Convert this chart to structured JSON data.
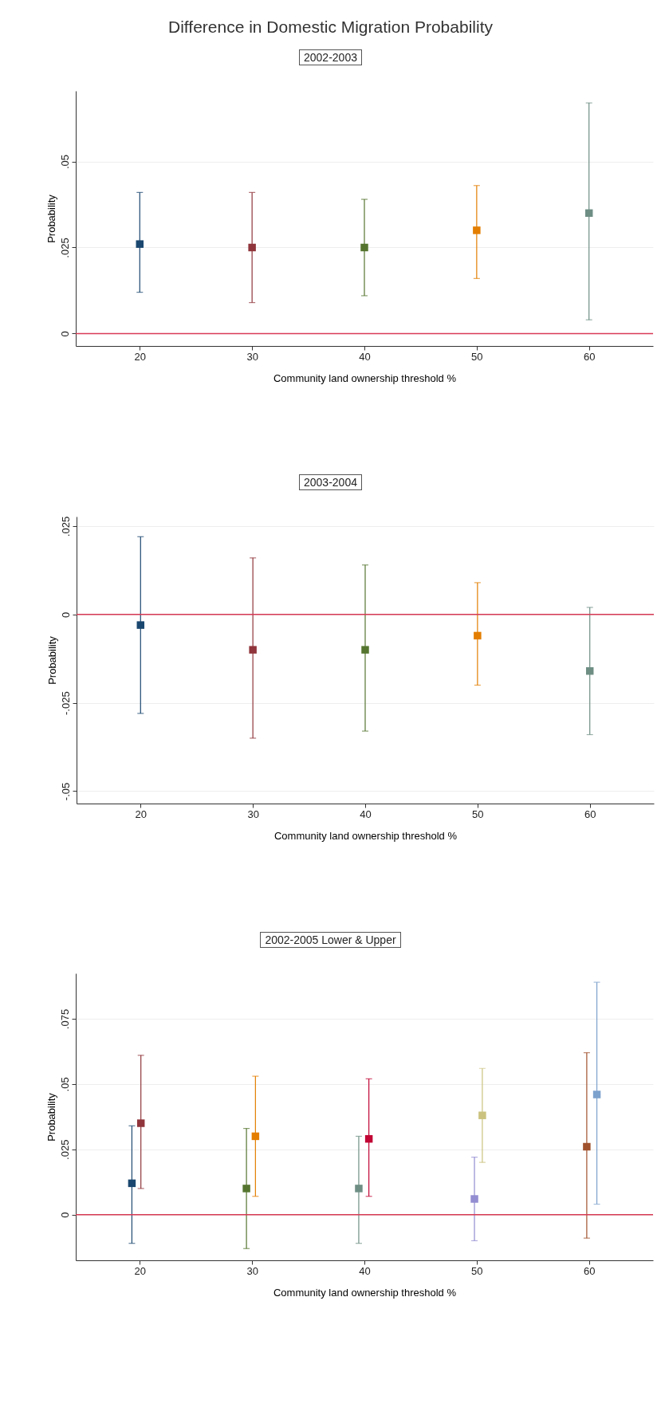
{
  "chart_data": [
    {
      "type": "scatter",
      "title": "Difference in Domestic Migration Probability",
      "subtitle": "2002-2003",
      "xlabel": "Community land ownership threshold %",
      "ylabel": "Probability",
      "marker": "square",
      "grid": "y",
      "x": [
        20,
        30,
        40,
        50,
        60
      ],
      "values": [
        0.026,
        0.025,
        0.025,
        0.03,
        0.035
      ],
      "errors": [
        [
          0.012,
          0.041
        ],
        [
          0.009,
          0.041
        ],
        [
          0.011,
          0.039
        ],
        [
          0.016,
          0.043
        ],
        [
          0.004,
          0.067
        ]
      ],
      "colors": [
        "#1a476f",
        "#90353b",
        "#55752f",
        "#e37e00",
        "#6e8e84"
      ],
      "xlim": [
        14.3,
        65.7
      ],
      "xticks": [
        20,
        30,
        40,
        50,
        60
      ],
      "ylim": [
        -0.0036,
        0.0705
      ],
      "yticks": [
        {
          "value": 0,
          "label": "0"
        },
        {
          "value": 0.025,
          "label": ".025"
        },
        {
          "value": 0.05,
          "label": ".05"
        }
      ],
      "ref_lines": [
        {
          "axis": "y",
          "value": 0,
          "color": "#d83a55"
        }
      ]
    },
    {
      "type": "scatter",
      "subtitle": "2003-2004",
      "xlabel": "Community land ownership threshold %",
      "ylabel": "Probability",
      "marker": "square",
      "grid": "y",
      "x": [
        20,
        30,
        40,
        50,
        60
      ],
      "values": [
        -0.003,
        -0.01,
        -0.01,
        -0.006,
        -0.016
      ],
      "errors": [
        [
          -0.028,
          0.022
        ],
        [
          -0.035,
          0.016
        ],
        [
          -0.033,
          0.014
        ],
        [
          -0.02,
          0.009
        ],
        [
          -0.034,
          0.002
        ]
      ],
      "colors": [
        "#1a476f",
        "#90353b",
        "#55752f",
        "#e37e00",
        "#6e8e84"
      ],
      "xlim": [
        14.3,
        65.7
      ],
      "xticks": [
        20,
        30,
        40,
        50,
        60
      ],
      "ylim": [
        -0.0535,
        0.0277
      ],
      "yticks": [
        {
          "value": -0.05,
          "label": "-.05"
        },
        {
          "value": -0.025,
          "label": "-.025"
        },
        {
          "value": 0,
          "label": "0"
        },
        {
          "value": 0.025,
          "label": ".025"
        }
      ],
      "ref_lines": [
        {
          "axis": "y",
          "value": 0,
          "color": "#d83a55"
        }
      ]
    },
    {
      "type": "scatter",
      "subtitle": "2002-2005 Lower & Upper",
      "xlabel": "Community land ownership threshold %",
      "ylabel": "Probability",
      "marker": "square",
      "grid": "y",
      "x": [
        19.3,
        20.1,
        29.5,
        30.3,
        39.5,
        40.4,
        49.8,
        50.5,
        59.8,
        60.7
      ],
      "values": [
        0.012,
        0.035,
        0.01,
        0.03,
        0.01,
        0.029,
        0.006,
        0.038,
        0.026,
        0.046
      ],
      "errors": [
        [
          -0.011,
          0.034
        ],
        [
          0.01,
          0.061
        ],
        [
          -0.013,
          0.033
        ],
        [
          0.007,
          0.053
        ],
        [
          -0.011,
          0.03
        ],
        [
          0.007,
          0.052
        ],
        [
          -0.01,
          0.022
        ],
        [
          0.02,
          0.056
        ],
        [
          -0.009,
          0.062
        ],
        [
          0.004,
          0.089
        ]
      ],
      "colors": [
        "#1a476f",
        "#90353b",
        "#55752f",
        "#e37e00",
        "#6e8e84",
        "#c10534",
        "#938dd2",
        "#cac27e",
        "#a0522d",
        "#7ca1cc"
      ],
      "xlim": [
        14.3,
        65.7
      ],
      "xticks": [
        20,
        30,
        40,
        50,
        60
      ],
      "ylim": [
        -0.0175,
        0.0924
      ],
      "yticks": [
        {
          "value": 0,
          "label": "0"
        },
        {
          "value": 0.025,
          "label": ".025"
        },
        {
          "value": 0.05,
          "label": ".05"
        },
        {
          "value": 0.075,
          "label": ".075"
        }
      ],
      "ref_lines": [
        {
          "axis": "y",
          "value": 0,
          "color": "#d83a55"
        }
      ]
    }
  ]
}
